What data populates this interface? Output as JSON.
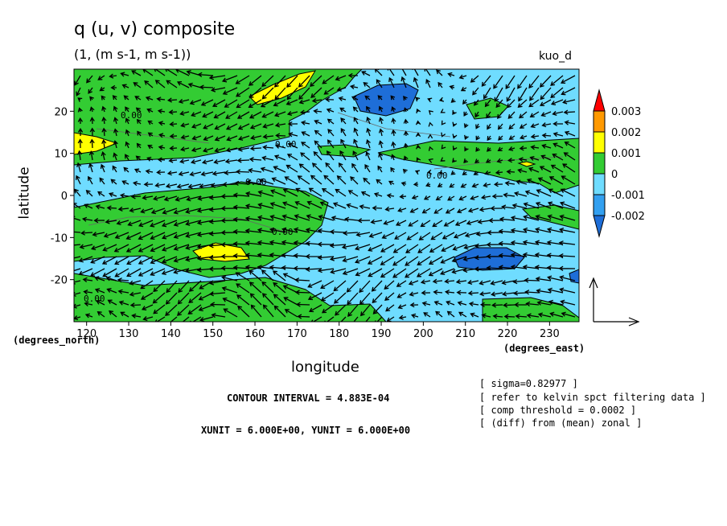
{
  "chart_data": {
    "type": "heatmap",
    "title": "q (u, v) composite",
    "subtitle": "(1, (m s-1, m s-1))",
    "corner_label": "kuo_d",
    "xlabel": "longitude",
    "ylabel": "latitude",
    "x_unit": "(degrees_east)",
    "y_unit": "(degrees_north)",
    "xlim": [
      117,
      237
    ],
    "ylim": [
      -30,
      30
    ],
    "x_ticks": [
      120,
      130,
      140,
      150,
      160,
      170,
      180,
      190,
      200,
      210,
      220,
      230
    ],
    "y_ticks": [
      20,
      10,
      0,
      -10,
      -20
    ],
    "y_tick_labels": [
      "20",
      "10",
      "0",
      "-10",
      "-20"
    ],
    "contour_labels": [
      "0.00",
      "0.00",
      "0.00",
      "0.00",
      "0.00",
      "0.00"
    ],
    "contour_interval": "CONTOUR INTERVAL = 4.883E-04",
    "vector_units": "XUNIT = 6.000E+00, YUNIT = 6.000E+00",
    "colorbar": {
      "levels": [
        -0.002,
        -0.001,
        0,
        0.001,
        0.002,
        0.003
      ],
      "level_labels": [
        "-0.002",
        "-0.001",
        "0",
        "0.001",
        "0.002",
        "0.003"
      ],
      "colors": [
        "#1e6ed8",
        "#33a0f0",
        "#6fdcff",
        "#33cc33",
        "#ffff00",
        "#ff9900",
        "#ff0000"
      ]
    },
    "notes": [
      "[ sigma=0.82977 ]",
      "[ refer to kelvin spct filtering data ]",
      "[ comp threshold = 0.0002 ]",
      "[ (diff) from (mean) zonal ]"
    ]
  }
}
